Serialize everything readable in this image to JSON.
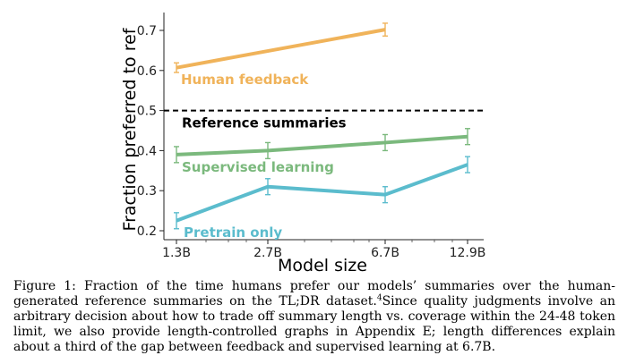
{
  "chart_data": {
    "type": "line",
    "title": "",
    "xlabel": "Model size",
    "ylabel": "Fraction preferred to ref",
    "x": [
      "1.3B",
      "2.7B",
      "6.7B",
      "12.9B"
    ],
    "x_log_values": [
      1.3,
      2.7,
      6.7,
      12.9
    ],
    "ylim": [
      0.18,
      0.76
    ],
    "yticks": [
      0.2,
      0.3,
      0.4,
      0.5,
      0.6,
      0.7
    ],
    "grid": false,
    "reference_line": {
      "label": "Reference summaries",
      "value": 0.5,
      "style": "dashed",
      "color": "#000000"
    },
    "series": [
      {
        "name": "Human feedback",
        "color": "#f0b35a",
        "x": [
          "1.3B",
          "6.7B"
        ],
        "values": [
          0.607,
          0.702
        ],
        "errors": [
          0.012,
          0.016
        ]
      },
      {
        "name": "Supervised learning",
        "color": "#7bb97d",
        "x": [
          "1.3B",
          "2.7B",
          "6.7B",
          "12.9B"
        ],
        "values": [
          0.39,
          0.4,
          0.42,
          0.435
        ],
        "errors": [
          0.02,
          0.02,
          0.02,
          0.02
        ]
      },
      {
        "name": "Pretrain only",
        "color": "#5bbccd",
        "x": [
          "1.3B",
          "2.7B",
          "6.7B",
          "12.9B"
        ],
        "values": [
          0.225,
          0.31,
          0.29,
          0.365
        ],
        "errors": [
          0.02,
          0.02,
          0.02,
          0.02
        ]
      }
    ]
  },
  "caption": {
    "lead": "Figure 1:  Fraction of the time humans prefer our models’ summaries over the human-generated reference summaries on the TL;DR dataset.",
    "footnote_mark": "4",
    "rest": "Since quality judgments involve an arbitrary decision about how to trade off summary length vs. coverage within the 24-48 token limit, we also provide length-controlled graphs in Appendix E; length differences explain about a third of the gap between feedback and supervised learning at 6.7B."
  }
}
